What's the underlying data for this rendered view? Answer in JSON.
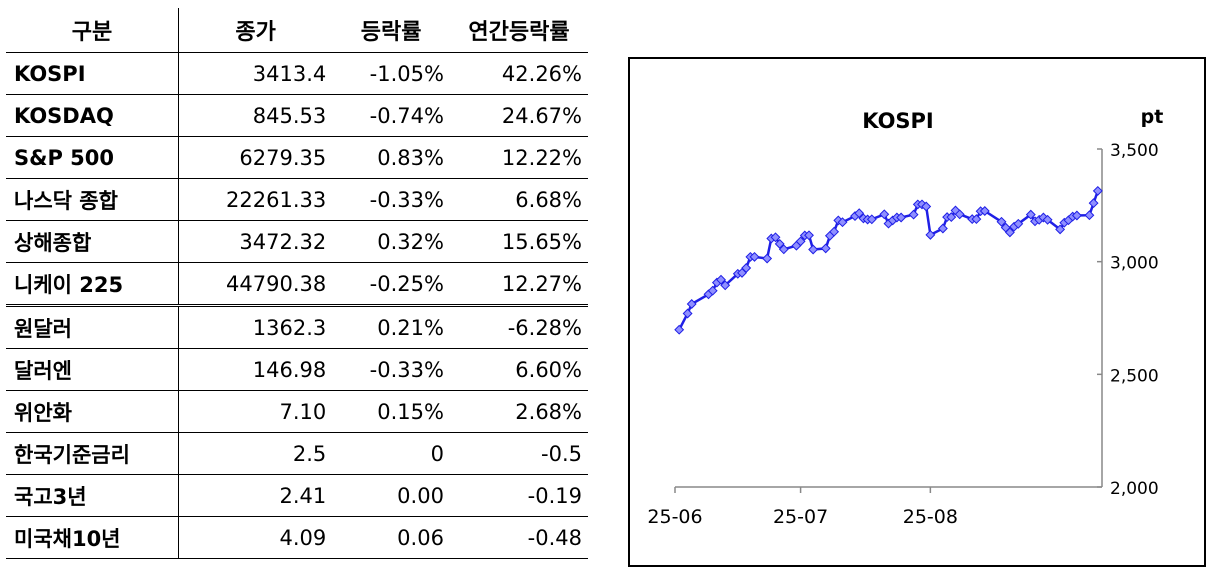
{
  "table": {
    "headers": [
      "구분",
      "종가",
      "등락률",
      "연간등락률"
    ],
    "rows": [
      {
        "name": "KOSPI",
        "close": "3413.4",
        "change": "-1.05%",
        "ytd": "42.26%"
      },
      {
        "name": "KOSDAQ",
        "close": "845.53",
        "change": "-0.74%",
        "ytd": "24.67%"
      },
      {
        "name": "S&P 500",
        "close": "6279.35",
        "change": "0.83%",
        "ytd": "12.22%"
      },
      {
        "name": "나스닥 종합",
        "close": "22261.33",
        "change": "-0.33%",
        "ytd": "6.68%"
      },
      {
        "name": "상해종합",
        "close": "3472.32",
        "change": "0.32%",
        "ytd": "15.65%"
      },
      {
        "name": "니케이 225",
        "close": "44790.38",
        "change": "-0.25%",
        "ytd": "12.27%"
      },
      {
        "name": "원달러",
        "close": "1362.3",
        "change": "0.21%",
        "ytd": "-6.28%"
      },
      {
        "name": "달러엔",
        "close": "146.98",
        "change": "-0.33%",
        "ytd": "6.60%"
      },
      {
        "name": "위안화",
        "close": "7.10",
        "change": "0.15%",
        "ytd": "2.68%"
      },
      {
        "name": "한국기준금리",
        "close": "2.5",
        "change": "0",
        "ytd": "-0.5"
      },
      {
        "name": "국고3년",
        "close": "2.41",
        "change": "0.00",
        "ytd": "-0.19"
      },
      {
        "name": "미국채10년",
        "close": "4.09",
        "change": "0.06",
        "ytd": "-0.48"
      }
    ]
  },
  "chart_data": {
    "type": "line",
    "title": "KOSPI",
    "ylabel": "pt",
    "ylim": [
      2000,
      3500
    ],
    "yticks": [
      "2,000",
      "2,500",
      "3,000",
      "3,500"
    ],
    "xticks": [
      "25-06",
      "25-07",
      "25-08"
    ],
    "grid": false,
    "color": "#1f1fe6",
    "series": [
      {
        "x": [
          "2025-06-02",
          "2025-06-04",
          "2025-06-05",
          "2025-06-09",
          "2025-06-10",
          "2025-06-11",
          "2025-06-12",
          "2025-06-13",
          "2025-06-16",
          "2025-06-17",
          "2025-06-18",
          "2025-06-19",
          "2025-06-20",
          "2025-06-23",
          "2025-06-24",
          "2025-06-25",
          "2025-06-26",
          "2025-06-27",
          "2025-06-30",
          "2025-07-01",
          "2025-07-02",
          "2025-07-03",
          "2025-07-04",
          "2025-07-07",
          "2025-07-08",
          "2025-07-09",
          "2025-07-10",
          "2025-07-11",
          "2025-07-14",
          "2025-07-15",
          "2025-07-16",
          "2025-07-17",
          "2025-07-18",
          "2025-07-21",
          "2025-07-22",
          "2025-07-23",
          "2025-07-24",
          "2025-07-25",
          "2025-07-28",
          "2025-07-29",
          "2025-07-30",
          "2025-07-31",
          "2025-08-01",
          "2025-08-04",
          "2025-08-05",
          "2025-08-06",
          "2025-08-07",
          "2025-08-08",
          "2025-08-11",
          "2025-08-12",
          "2025-08-13",
          "2025-08-14",
          "2025-08-18",
          "2025-08-19",
          "2025-08-20",
          "2025-08-21",
          "2025-08-22",
          "2025-08-25",
          "2025-08-26",
          "2025-08-27",
          "2025-08-28",
          "2025-08-29",
          "2025-09-01",
          "2025-09-02",
          "2025-09-03",
          "2025-09-04",
          "2025-09-05",
          "2025-09-08",
          "2025-09-09",
          "2025-09-10"
        ],
        "y": [
          2698,
          2770,
          2812,
          2855,
          2871,
          2907,
          2920,
          2895,
          2946,
          2950,
          2972,
          3021,
          3021,
          3014,
          3103,
          3108,
          3079,
          3055,
          3071,
          3090,
          3116,
          3117,
          3054,
          3059,
          3115,
          3133,
          3183,
          3175,
          3202,
          3215,
          3192,
          3187,
          3188,
          3210,
          3169,
          3183,
          3196,
          3196,
          3209,
          3254,
          3254,
          3245,
          3119,
          3147,
          3198,
          3198,
          3227,
          3210,
          3189,
          3189,
          3224,
          3225,
          3177,
          3151,
          3130,
          3155,
          3168,
          3209,
          3179,
          3186,
          3196,
          3186,
          3143,
          3173,
          3184,
          3200,
          3205,
          3206,
          3260,
          3314
        ]
      }
    ]
  }
}
